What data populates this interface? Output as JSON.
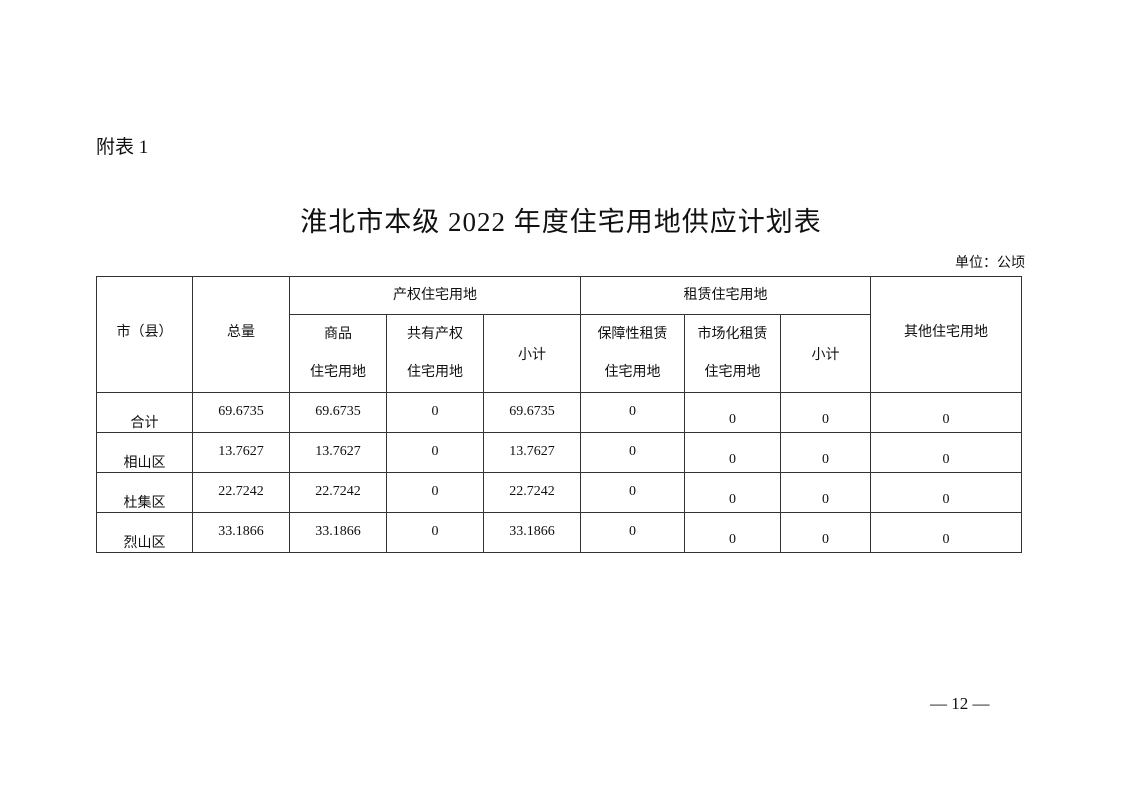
{
  "attachment_label": "附表 1",
  "title": "淮北市本级 2022 年度住宅用地供应计划表",
  "unit": "单位：公顷",
  "page_number": "— 12 —",
  "table": {
    "headers": {
      "city": "市（县）",
      "total": "总量",
      "ownership_group": "产权住宅用地",
      "rental_group": "租赁住宅用地",
      "other": "其他住宅用地",
      "commercial_l1": "商品",
      "commercial_l2": "住宅用地",
      "shared_l1": "共有产权",
      "shared_l2": "住宅用地",
      "subtotal1": "小计",
      "affordable_l1": "保障性租赁",
      "affordable_l2": "住宅用地",
      "market_l1": "市场化租赁",
      "market_l2": "住宅用地",
      "subtotal2": "小计"
    },
    "rows": [
      [
        "合计",
        "69.6735",
        "69.6735",
        "0",
        "69.6735",
        "0",
        "0",
        "0",
        "0"
      ],
      [
        "相山区",
        "13.7627",
        "13.7627",
        "0",
        "13.7627",
        "0",
        "0",
        "0",
        "0"
      ],
      [
        "杜集区",
        "22.7242",
        "22.7242",
        "0",
        "22.7242",
        "0",
        "0",
        "0",
        "0"
      ],
      [
        "烈山区",
        "33.1866",
        "33.1866",
        "0",
        "33.1866",
        "0",
        "0",
        "0",
        "0"
      ]
    ]
  }
}
